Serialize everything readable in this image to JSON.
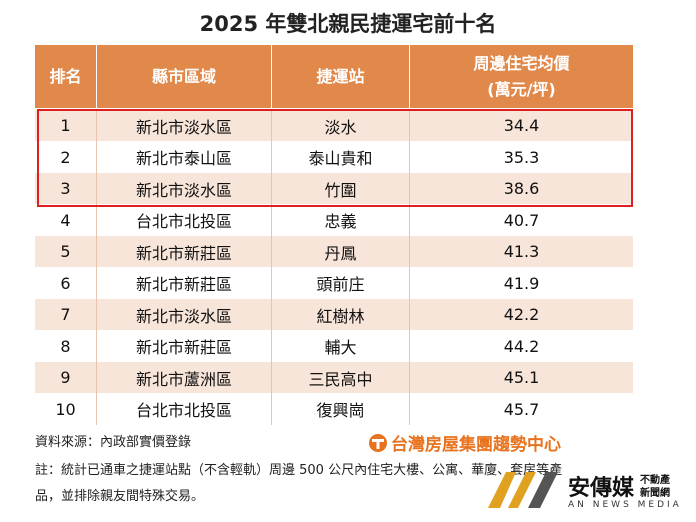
{
  "title": "2025 年雙北親民捷運宅前十名",
  "table": {
    "headers": [
      "排名",
      "縣市區域",
      "捷運站",
      [
        "周邊住宅均價",
        "(萬元/坪)"
      ]
    ],
    "rows": [
      [
        1,
        "新北市淡水區",
        "淡水",
        34.4
      ],
      [
        2,
        "新北市泰山區",
        "泰山貴和",
        35.3
      ],
      [
        3,
        "新北市淡水區",
        "竹圍",
        38.6
      ],
      [
        4,
        "台北市北投區",
        "忠義",
        40.7
      ],
      [
        5,
        "新北市新莊區",
        "丹鳳",
        41.3
      ],
      [
        6,
        "新北市新莊區",
        "頭前庄",
        41.9
      ],
      [
        7,
        "新北市淡水區",
        "紅樹林",
        42.2
      ],
      [
        8,
        "新北市新莊區",
        "輔大",
        44.2
      ],
      [
        9,
        "新北市蘆洲區",
        "三民高中",
        45.1
      ],
      [
        10,
        "台北市北投區",
        "復興崗",
        45.7
      ]
    ]
  },
  "source": "資料來源：內政部實價登錄",
  "note": [
    "註：統計已通車之捷運站點（不含輕軌）周邊 500 公尺內住宅大樓、公寓、華廈、套房等產",
    "品，並排除親友間特殊交易。"
  ],
  "logo": "台灣房屋集團趨勢中心",
  "media": {
    "name": "安傳媒",
    "tag": [
      "不動產",
      "新聞網"
    ],
    "en": "AN NEWS MEDIA"
  }
}
